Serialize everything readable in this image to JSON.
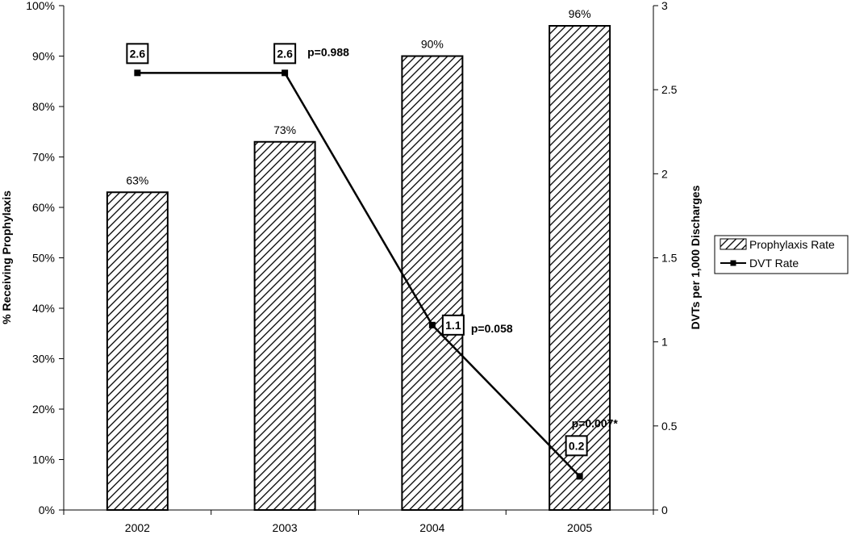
{
  "chart_data": {
    "type": "bar",
    "categories": [
      "2002",
      "2003",
      "2004",
      "2005"
    ],
    "series": [
      {
        "name": "Prophylaxis Rate",
        "kind": "bar",
        "axis": "left",
        "values": [
          63,
          73,
          90,
          96
        ],
        "labels": [
          "63%",
          "73%",
          "90%",
          "96%"
        ]
      },
      {
        "name": "DVT Rate",
        "kind": "line",
        "axis": "right",
        "values": [
          2.6,
          2.6,
          1.1,
          0.2
        ],
        "labels": [
          "2.6",
          "2.6",
          "1.1",
          "0.2"
        ]
      }
    ],
    "annotations": [
      "",
      "p=0.988",
      "p=0.058",
      "p=0.007*"
    ],
    "ylabel_left": "% Receiving Prophylaxis",
    "ylabel_right": "DVTs per 1,000 Discharges",
    "ylim_left": [
      0,
      100
    ],
    "ylim_right": [
      0,
      3
    ],
    "left_ticks": [
      "0%",
      "10%",
      "20%",
      "30%",
      "40%",
      "50%",
      "60%",
      "70%",
      "80%",
      "90%",
      "100%"
    ],
    "right_ticks": [
      "0",
      "0.5",
      "1",
      "1.5",
      "2",
      "2.5",
      "3"
    ],
    "grid": false,
    "legend_position": "right"
  }
}
